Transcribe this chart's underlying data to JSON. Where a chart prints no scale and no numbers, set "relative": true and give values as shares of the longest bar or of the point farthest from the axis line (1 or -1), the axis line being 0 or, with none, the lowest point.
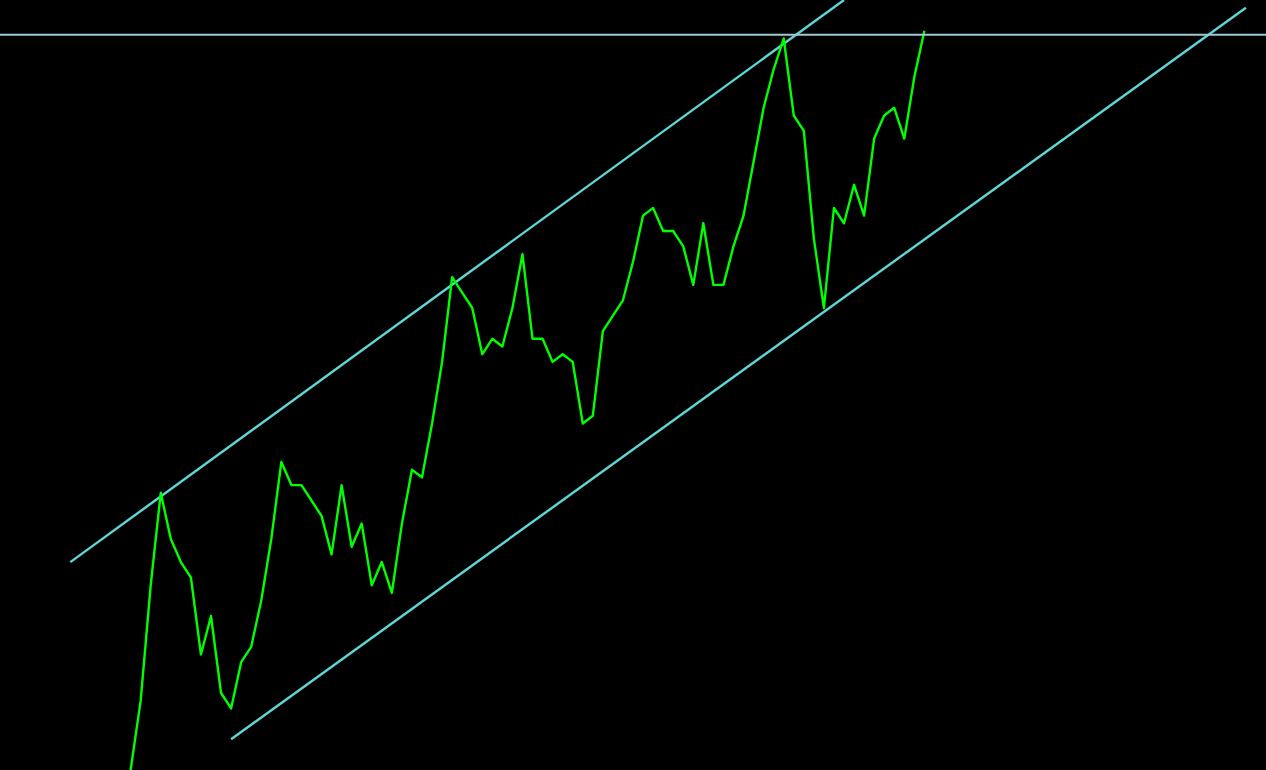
{
  "chart_data": {
    "type": "line",
    "relative": true,
    "legend": false,
    "marker": "none",
    "line_style": "solid",
    "categories": [
      null,
      null,
      null,
      null,
      null,
      null,
      null,
      null,
      null,
      null,
      null,
      null,
      null,
      null,
      null,
      null,
      null,
      null,
      null,
      null,
      null,
      null,
      null,
      null,
      null,
      null,
      null,
      null,
      null,
      null,
      null,
      null,
      null,
      null,
      null,
      null,
      null,
      null,
      null,
      null,
      null,
      null,
      null,
      null,
      null,
      null,
      null,
      null,
      null,
      null,
      null,
      null,
      null,
      null,
      null,
      null,
      null,
      null,
      null,
      null,
      null,
      null,
      null,
      null,
      null,
      null,
      null,
      null,
      null,
      null,
      null,
      null,
      null,
      null,
      null,
      null,
      null,
      null,
      null,
      null,
      null,
      null,
      null,
      null,
      null,
      null,
      null,
      null,
      null,
      null,
      null,
      null,
      null,
      null,
      null,
      null,
      null,
      null,
      null,
      null,
      null,
      null,
      null,
      null,
      null,
      null,
      null,
      null,
      null,
      null,
      null,
      null,
      null,
      null,
      null,
      null,
      null,
      null,
      null,
      null,
      null,
      null,
      null,
      null,
      null,
      null,
      null
    ],
    "series": [
      {
        "color": "#00ff00",
        "values": [
          null,
          null,
          null,
          null,
          null,
          null,
          null,
          null,
          null,
          null,
          null,
          null,
          null,
          0,
          0.09,
          0.24,
          0.36,
          0.3,
          0.27,
          0.25,
          0.15,
          0.2,
          0.1,
          0.08,
          0.14,
          0.16,
          0.22,
          0.3,
          0.4,
          0.37,
          0.37,
          0.35,
          0.33,
          0.28,
          0.37,
          0.29,
          0.32,
          0.24,
          0.27,
          0.23,
          0.32,
          0.39,
          0.38,
          0.45,
          0.53,
          0.64,
          0.62,
          0.6,
          0.54,
          0.56,
          0.55,
          0.6,
          0.67,
          0.56,
          0.56,
          0.53,
          0.54,
          0.53,
          0.45,
          0.46,
          0.57,
          0.59,
          0.61,
          0.66,
          0.72,
          0.73,
          0.7,
          0.7,
          0.68,
          0.63,
          0.71,
          0.63,
          0.63,
          0.68,
          0.72,
          0.79,
          0.86,
          0.91,
          0.95,
          0.85,
          0.83,
          0.69,
          0.6,
          0.73,
          0.71,
          0.76,
          0.72,
          0.82,
          0.85,
          0.86,
          0.82,
          0.9,
          0.96,
          null,
          null,
          null,
          null,
          null,
          null,
          null,
          null,
          null,
          null,
          null,
          null,
          null,
          null,
          null,
          null,
          null,
          null,
          null,
          null,
          null,
          null,
          null,
          null,
          null,
          null,
          null,
          null,
          null,
          null,
          null,
          null,
          null,
          null
        ]
      },
      {
        "color": "#5fd7d7",
        "values": [
          null,
          null,
          null,
          null,
          null,
          null,
          null,
          0.27,
          null,
          null,
          null,
          null,
          null,
          null,
          null,
          null,
          null,
          null,
          null,
          null,
          null,
          null,
          null,
          null,
          null,
          null,
          null,
          null,
          null,
          null,
          null,
          null,
          null,
          null,
          null,
          null,
          null,
          null,
          null,
          null,
          null,
          null,
          null,
          null,
          null,
          null,
          null,
          null,
          null,
          null,
          null,
          null,
          null,
          null,
          null,
          null,
          null,
          null,
          null,
          null,
          null,
          null,
          null,
          null,
          null,
          null,
          null,
          null,
          null,
          null,
          null,
          null,
          null,
          null,
          null,
          null,
          null,
          null,
          null,
          null,
          null,
          null,
          null,
          null,
          1,
          null,
          null,
          null,
          null,
          null,
          null,
          null,
          null,
          null,
          null,
          null,
          null,
          null,
          null,
          null,
          null,
          null,
          null,
          null,
          null,
          null,
          null,
          null,
          null,
          null,
          null,
          null,
          null,
          null,
          null,
          null,
          null,
          null,
          null,
          null,
          null,
          null,
          null,
          null,
          null,
          null,
          null
        ]
      },
      {
        "color": "#5fd7d7",
        "values": [
          null,
          null,
          null,
          null,
          null,
          null,
          null,
          null,
          null,
          null,
          null,
          null,
          null,
          null,
          null,
          null,
          null,
          null,
          null,
          null,
          null,
          null,
          null,
          0.04,
          null,
          null,
          null,
          null,
          null,
          null,
          null,
          null,
          null,
          null,
          null,
          null,
          null,
          null,
          null,
          null,
          null,
          null,
          null,
          null,
          null,
          null,
          null,
          null,
          null,
          null,
          null,
          null,
          null,
          null,
          null,
          null,
          null,
          null,
          null,
          null,
          null,
          null,
          null,
          null,
          null,
          null,
          null,
          null,
          null,
          null,
          null,
          null,
          null,
          null,
          null,
          null,
          null,
          null,
          null,
          null,
          null,
          null,
          null,
          null,
          null,
          null,
          null,
          null,
          null,
          null,
          null,
          null,
          null,
          null,
          null,
          null,
          null,
          null,
          null,
          null,
          null,
          null,
          null,
          null,
          null,
          null,
          null,
          null,
          null,
          null,
          null,
          null,
          null,
          null,
          null,
          null,
          null,
          null,
          null,
          null,
          null,
          null,
          null,
          null,
          0.99,
          null,
          null
        ]
      }
    ],
    "ref_lines": [
      {
        "axis": "y",
        "value": 0.955,
        "color": "#9ec9d0"
      }
    ]
  }
}
